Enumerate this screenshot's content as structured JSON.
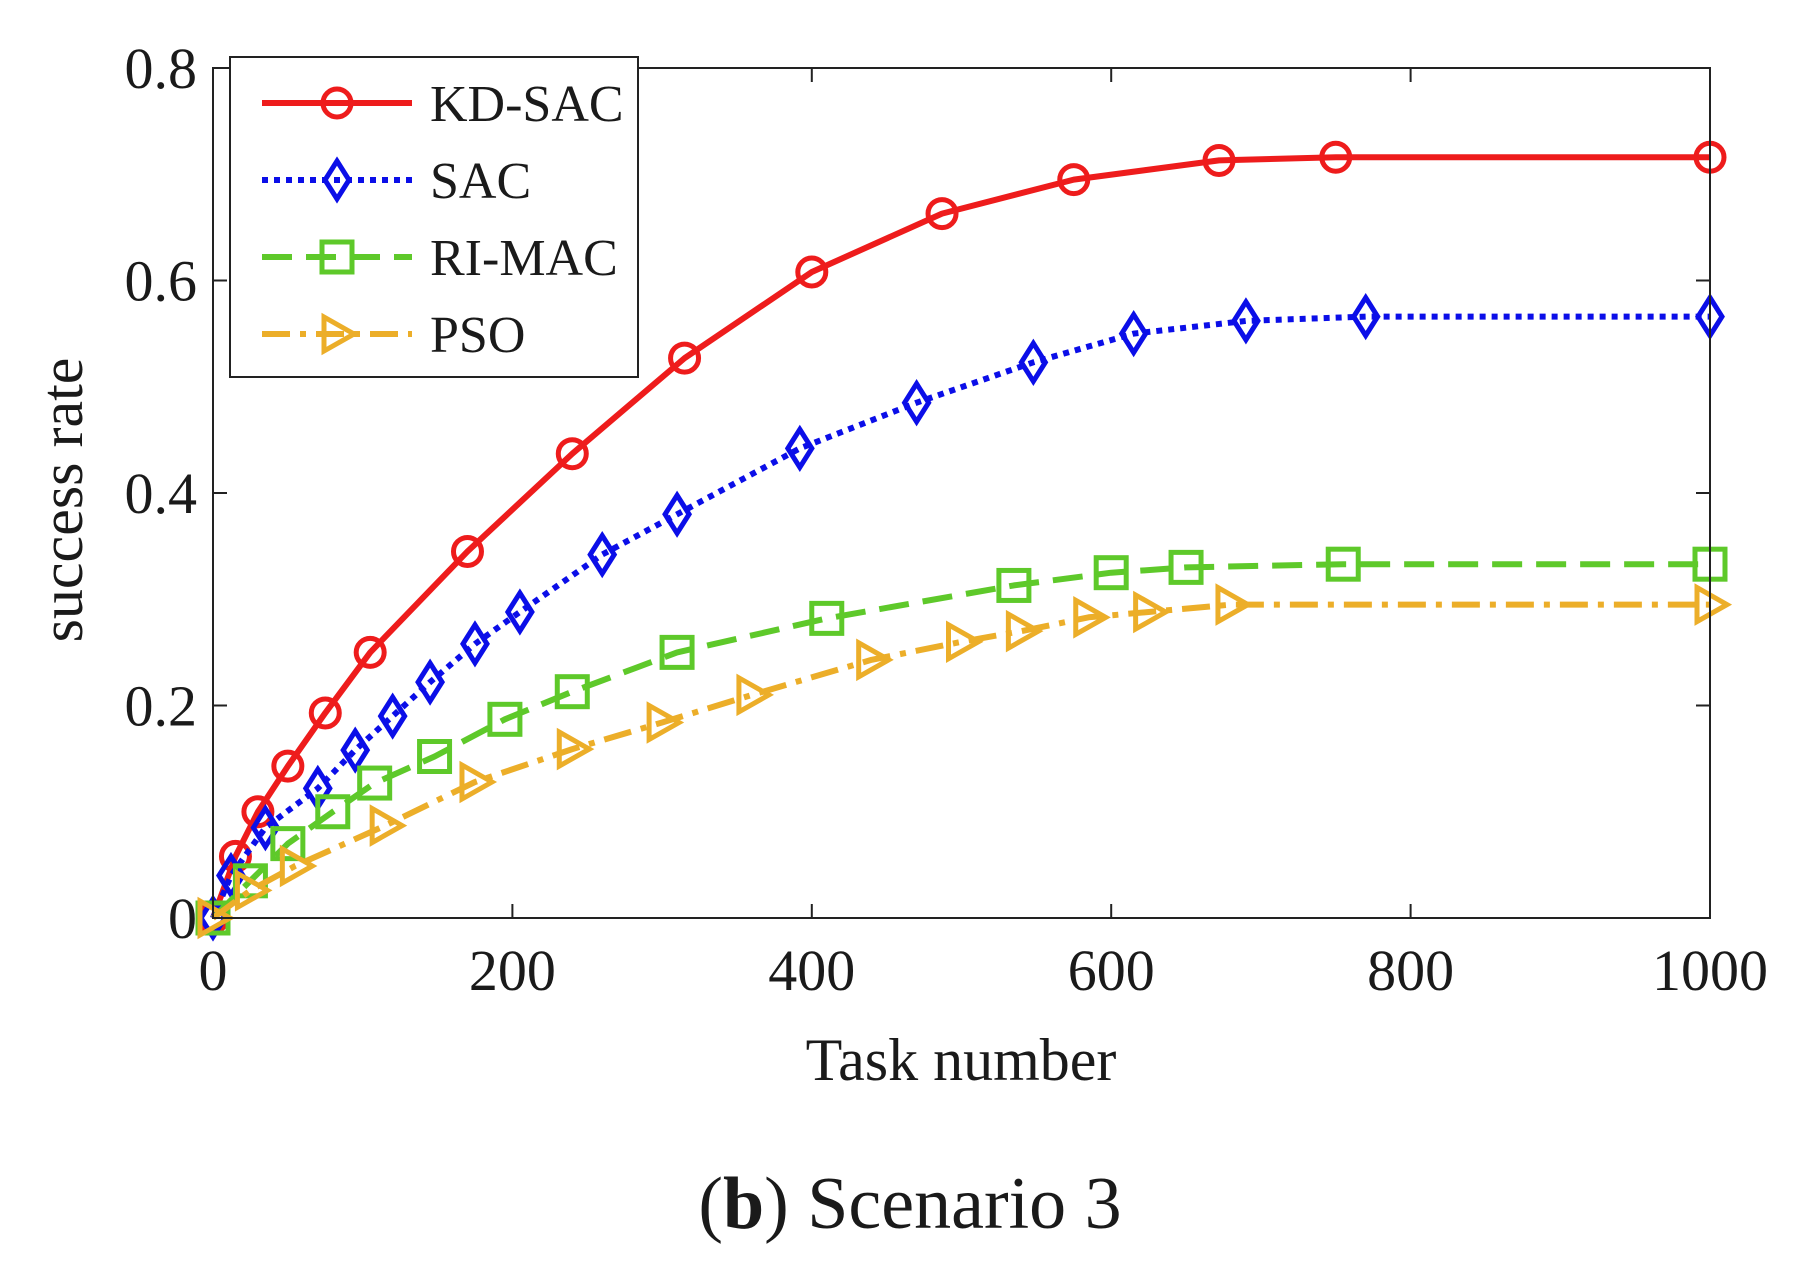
{
  "chart_data": {
    "type": "line",
    "xlabel": "Task number",
    "ylabel": "success rate",
    "xlim": [
      0,
      1000
    ],
    "ylim": [
      0,
      0.8
    ],
    "xticks": [
      0,
      200,
      400,
      600,
      800,
      1000
    ],
    "yticks": [
      0,
      0.2,
      0.4,
      0.6,
      0.8
    ],
    "xtick_labels": [
      "0",
      "200",
      "400",
      "600",
      "800",
      "1000"
    ],
    "ytick_labels": [
      "0",
      "0.2",
      "0.4",
      "0.6",
      "0.8"
    ],
    "grid": false,
    "legend_position": "top-left",
    "series": [
      {
        "name": "KD-SAC",
        "color": "#ee1c1c",
        "line_style": "solid",
        "marker": "circle",
        "x": [
          0,
          15,
          30,
          50,
          75,
          105,
          170,
          240,
          315,
          400,
          487,
          575,
          672,
          750,
          1000
        ],
        "y": [
          0,
          0.058,
          0.1,
          0.143,
          0.193,
          0.25,
          0.345,
          0.437,
          0.527,
          0.608,
          0.663,
          0.695,
          0.713,
          0.716,
          0.716
        ]
      },
      {
        "name": "SAC",
        "color": "#0b0ee8",
        "line_style": "dotted",
        "marker": "diamond",
        "x": [
          0,
          12,
          35,
          70,
          95,
          120,
          145,
          175,
          205,
          260,
          310,
          392,
          470,
          548,
          615,
          690,
          770,
          1000
        ],
        "y": [
          0,
          0.04,
          0.085,
          0.122,
          0.158,
          0.19,
          0.222,
          0.258,
          0.288,
          0.342,
          0.38,
          0.442,
          0.485,
          0.523,
          0.55,
          0.562,
          0.566,
          0.566
        ]
      },
      {
        "name": "RI-MAC",
        "color": "#5ec92a",
        "line_style": "dashed",
        "marker": "square",
        "x": [
          0,
          25,
          50,
          80,
          108,
          148,
          195,
          240,
          310,
          410,
          535,
          600,
          650,
          755,
          1000
        ],
        "y": [
          0,
          0.035,
          0.07,
          0.1,
          0.127,
          0.152,
          0.187,
          0.213,
          0.25,
          0.282,
          0.313,
          0.325,
          0.33,
          0.333,
          0.333
        ]
      },
      {
        "name": "PSO",
        "color": "#ecae29",
        "line_style": "dashdot",
        "marker": "triangle-right",
        "x": [
          0,
          25,
          55,
          115,
          175,
          240,
          300,
          360,
          440,
          500,
          540,
          585,
          625,
          680,
          1000
        ],
        "y": [
          0,
          0.026,
          0.049,
          0.087,
          0.128,
          0.159,
          0.184,
          0.21,
          0.243,
          0.26,
          0.27,
          0.283,
          0.288,
          0.295,
          0.295
        ]
      }
    ],
    "caption": {
      "label": "b",
      "text": "Scenario 3"
    }
  }
}
